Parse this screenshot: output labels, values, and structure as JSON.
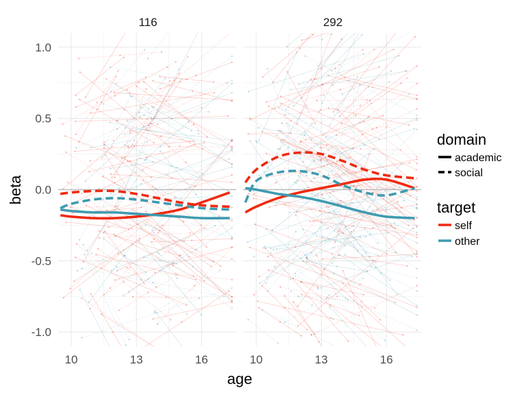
{
  "chart_data": {
    "type": "line",
    "title": "",
    "xlabel": "age",
    "ylabel": "beta",
    "xlim": [
      9.4,
      17.6
    ],
    "ylim": [
      -1.1,
      1.1
    ],
    "x_ticks": [
      10,
      13,
      16
    ],
    "x_tick_labels": [
      "10",
      "13",
      "16"
    ],
    "y_ticks": [
      -1.0,
      -0.5,
      0.0,
      0.5,
      1.0
    ],
    "y_tick_labels": [
      "-1.0",
      "-0.5",
      "0.0",
      "0.5",
      "1.0"
    ],
    "grid": true,
    "reference_line_y": 0,
    "colors": {
      "self": "#f02a10",
      "other": "#3e9bb0",
      "grid": "#ebebeb",
      "zero_line": "#bdbdbd",
      "text": "#4d4d4d"
    },
    "legend": {
      "placement": "right",
      "groups": [
        {
          "title": "domain",
          "entries": [
            {
              "label": "academic",
              "linetype": "solid"
            },
            {
              "label": "social",
              "linetype": "dashed"
            }
          ]
        },
        {
          "title": "target",
          "entries": [
            {
              "label": "self",
              "color": "#f02a10"
            },
            {
              "label": "other",
              "color": "#3e9bb0"
            }
          ]
        }
      ]
    },
    "panels": [
      {
        "label": "116",
        "series": [
          {
            "target": "self",
            "domain": "academic",
            "x": [
              9.5,
              10,
              11,
              12,
              13,
              14,
              15,
              16,
              17.3
            ],
            "y": [
              -0.18,
              -0.19,
              -0.2,
              -0.2,
              -0.19,
              -0.17,
              -0.14,
              -0.09,
              -0.02
            ]
          },
          {
            "target": "self",
            "domain": "social",
            "x": [
              9.5,
              10,
              11,
              12,
              13,
              14,
              15,
              16,
              17.3
            ],
            "y": [
              -0.03,
              -0.02,
              -0.01,
              -0.01,
              -0.03,
              -0.06,
              -0.09,
              -0.11,
              -0.12
            ]
          },
          {
            "target": "other",
            "domain": "academic",
            "x": [
              9.5,
              10,
              11,
              12,
              13,
              14,
              15,
              16,
              17.3
            ],
            "y": [
              -0.14,
              -0.15,
              -0.16,
              -0.16,
              -0.17,
              -0.18,
              -0.19,
              -0.2,
              -0.2
            ]
          },
          {
            "target": "other",
            "domain": "social",
            "x": [
              9.5,
              10,
              11,
              12,
              13,
              14,
              15,
              16,
              17.3
            ],
            "y": [
              -0.13,
              -0.1,
              -0.07,
              -0.06,
              -0.07,
              -0.09,
              -0.11,
              -0.13,
              -0.14
            ]
          }
        ]
      },
      {
        "label": "292",
        "series": [
          {
            "target": "self",
            "domain": "academic",
            "x": [
              9.5,
              10,
              11,
              12,
              13,
              14,
              15,
              16,
              17.3
            ],
            "y": [
              -0.16,
              -0.12,
              -0.06,
              -0.02,
              0.01,
              0.04,
              0.07,
              0.07,
              0.01
            ]
          },
          {
            "target": "self",
            "domain": "social",
            "x": [
              9.5,
              10,
              11,
              12,
              13,
              14,
              15,
              16,
              17.3
            ],
            "y": [
              0.05,
              0.14,
              0.23,
              0.26,
              0.25,
              0.2,
              0.14,
              0.1,
              0.08
            ]
          },
          {
            "target": "other",
            "domain": "academic",
            "x": [
              9.5,
              10,
              11,
              12,
              13,
              14,
              15,
              16,
              17.3
            ],
            "y": [
              0.01,
              0.0,
              -0.03,
              -0.05,
              -0.08,
              -0.12,
              -0.16,
              -0.19,
              -0.2
            ]
          },
          {
            "target": "other",
            "domain": "social",
            "x": [
              9.5,
              10,
              11,
              12,
              13,
              14,
              15,
              16,
              17.3
            ],
            "y": [
              -0.09,
              0.06,
              0.12,
              0.13,
              0.1,
              0.03,
              -0.02,
              -0.04,
              0.01
            ]
          }
        ]
      }
    ]
  }
}
